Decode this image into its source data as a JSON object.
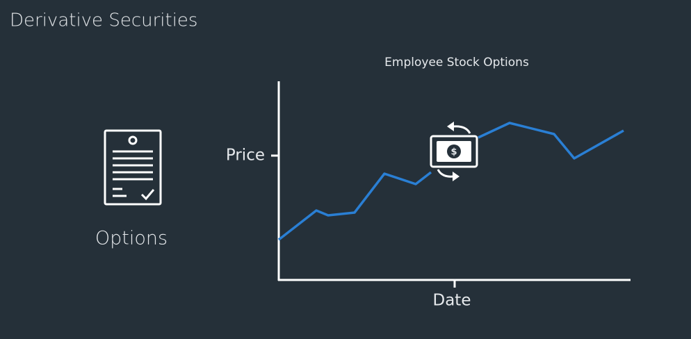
{
  "header": {
    "title": "Derivative Securities"
  },
  "icon": {
    "label": "Options"
  },
  "chart": {
    "title": "Employee Stock Options",
    "y_label": "Price",
    "x_label": "Date"
  }
}
